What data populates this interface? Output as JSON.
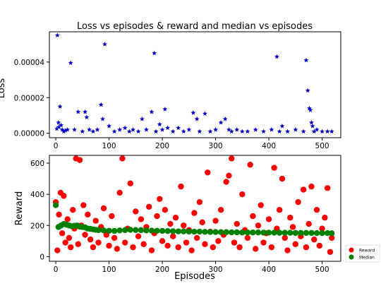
{
  "chart_data": [
    {
      "type": "scatter",
      "title": "Loss vs episodes & reward and median vs episodes",
      "xlabel": "",
      "ylabel": "Loss",
      "xlim": [
        -12,
        535
      ],
      "ylim": [
        -2.5e-06,
        5.7e-05
      ],
      "xticks": [
        0,
        100,
        200,
        300,
        400,
        500
      ],
      "xtick_labels": [
        "0",
        "100",
        "200",
        "300",
        "400",
        "500"
      ],
      "yticks": [
        0,
        2e-05,
        4e-05
      ],
      "ytick_labels": [
        "0.00000",
        "0.00002",
        "0.00004"
      ],
      "grid": false,
      "series": [
        {
          "color": "#0000cc",
          "marker": "star",
          "x": [
            2,
            3,
            5,
            6,
            8,
            10,
            12,
            15,
            18,
            22,
            28,
            35,
            42,
            50,
            55,
            58,
            63,
            70,
            78,
            85,
            88,
            92,
            100,
            110,
            120,
            130,
            138,
            145,
            155,
            162,
            170,
            180,
            185,
            188,
            195,
            200,
            205,
            210,
            220,
            230,
            240,
            250,
            258,
            265,
            270,
            280,
            290,
            300,
            310,
            318,
            325,
            330,
            340,
            350,
            360,
            375,
            390,
            405,
            415,
            420,
            425,
            435,
            450,
            465,
            470,
            473,
            476,
            478,
            480,
            482,
            485,
            490,
            500,
            510,
            518
          ],
          "y": [
            2.5e-06,
            5.5e-05,
            6e-06,
            3.5e-06,
            1.5e-05,
            4.5e-06,
            2e-06,
            1e-06,
            1.5e-06,
            2e-06,
            3.95e-05,
            2e-06,
            1.2e-05,
            1e-06,
            1.2e-05,
            9e-06,
            2e-06,
            1e-06,
            2e-06,
            1.6e-05,
            8e-06,
            5e-05,
            4e-06,
            1e-06,
            2e-06,
            3e-06,
            1e-06,
            2e-06,
            1e-06,
            8e-06,
            2e-06,
            1.2e-05,
            4.5e-05,
            1e-06,
            5e-06,
            2e-06,
            1.35e-05,
            3e-06,
            1e-06,
            3e-06,
            1e-06,
            2e-06,
            1.15e-05,
            8e-06,
            1e-06,
            1.1e-05,
            1e-06,
            2e-06,
            6e-06,
            8e-06,
            2e-06,
            1e-06,
            2e-06,
            1e-06,
            1e-06,
            2e-06,
            1e-06,
            2e-06,
            4.3e-05,
            1e-06,
            4e-06,
            1e-06,
            2e-06,
            1e-06,
            4.1e-05,
            2.4e-05,
            1.4e-05,
            1.3e-05,
            6e-06,
            4e-06,
            1e-06,
            2e-06,
            1e-06,
            1e-06,
            1e-06
          ]
        }
      ]
    },
    {
      "type": "scatter",
      "title": "",
      "xlabel": "Episodes",
      "ylabel": "Reward",
      "xlim": [
        -12,
        535
      ],
      "ylim": [
        -30,
        650
      ],
      "xticks": [
        0,
        100,
        200,
        300,
        400,
        500
      ],
      "xtick_labels": [
        "0",
        "100",
        "200",
        "300",
        "400",
        "500"
      ],
      "yticks": [
        0,
        200,
        400,
        600
      ],
      "ytick_labels": [
        "0",
        "200",
        "400",
        "600"
      ],
      "grid": false,
      "legend": "lower-right outside",
      "series": [
        {
          "name": "Reward",
          "color": "#ff0000",
          "x": [
            0,
            3,
            6,
            9,
            12,
            15,
            18,
            22,
            25,
            28,
            32,
            35,
            38,
            42,
            45,
            48,
            52,
            55,
            60,
            65,
            70,
            75,
            80,
            85,
            90,
            95,
            100,
            105,
            110,
            115,
            120,
            125,
            130,
            135,
            140,
            145,
            150,
            155,
            160,
            165,
            170,
            175,
            180,
            185,
            190,
            195,
            200,
            205,
            210,
            215,
            220,
            225,
            230,
            235,
            240,
            245,
            250,
            255,
            260,
            265,
            270,
            275,
            280,
            285,
            290,
            295,
            300,
            305,
            310,
            315,
            320,
            325,
            330,
            335,
            340,
            345,
            350,
            355,
            360,
            365,
            370,
            375,
            380,
            385,
            390,
            395,
            400,
            405,
            410,
            415,
            420,
            425,
            430,
            435,
            440,
            445,
            450,
            455,
            460,
            465,
            470,
            475,
            480,
            485,
            490,
            495,
            500,
            505,
            510,
            515,
            518
          ],
          "y": [
            350,
            40,
            270,
            410,
            150,
            390,
            90,
            240,
            120,
            60,
            300,
            180,
            630,
            80,
            620,
            200,
            330,
            140,
            270,
            110,
            60,
            230,
            90,
            190,
            310,
            140,
            70,
            260,
            120,
            50,
            410,
            630,
            90,
            180,
            470,
            60,
            290,
            130,
            240,
            80,
            190,
            320,
            40,
            150,
            260,
            370,
            100,
            300,
            70,
            210,
            130,
            250,
            60,
            450,
            200,
            90,
            170,
            40,
            280,
            120,
            350,
            220,
            80,
            540,
            160,
            60,
            230,
            100,
            300,
            140,
            480,
            520,
            630,
            90,
            210,
            60,
            400,
            170,
            120,
            590,
            260,
            50,
            200,
            330,
            90,
            150,
            240,
            60,
            570,
            180,
            300,
            500,
            120,
            40,
            250,
            190,
            80,
            350,
            130,
            430,
            60,
            210,
            450,
            110,
            300,
            70,
            180,
            250,
            440,
            30,
            120
          ]
        },
        {
          "name": "Median",
          "color": "#008000",
          "x": [
            0,
            5,
            10,
            15,
            20,
            25,
            30,
            35,
            40,
            45,
            50,
            55,
            60,
            65,
            70,
            75,
            80,
            90,
            100,
            110,
            120,
            130,
            140,
            150,
            160,
            170,
            180,
            190,
            200,
            210,
            220,
            230,
            240,
            250,
            260,
            270,
            280,
            290,
            300,
            310,
            320,
            330,
            340,
            350,
            360,
            370,
            380,
            390,
            400,
            410,
            420,
            430,
            440,
            450,
            460,
            470,
            480,
            490,
            500,
            510,
            518
          ],
          "y": [
            330,
            190,
            200,
            210,
            205,
            200,
            195,
            198,
            200,
            192,
            190,
            188,
            180,
            178,
            175,
            172,
            170,
            168,
            166,
            165,
            168,
            170,
            172,
            171,
            170,
            168,
            167,
            166,
            165,
            164,
            163,
            162,
            162,
            161,
            160,
            160,
            159,
            158,
            158,
            157,
            157,
            156,
            156,
            155,
            155,
            155,
            155,
            154,
            154,
            154,
            153,
            153,
            153,
            152,
            152,
            152,
            152,
            151,
            151,
            151,
            150
          ]
        }
      ]
    }
  ]
}
